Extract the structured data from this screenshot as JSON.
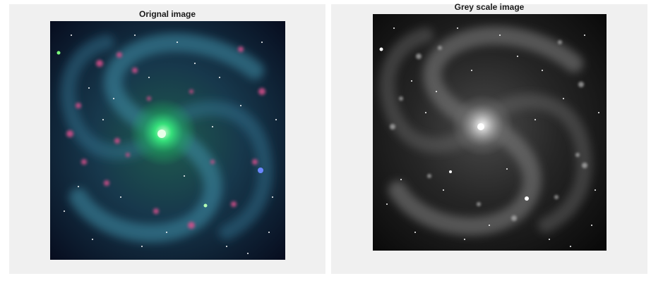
{
  "figure": {
    "panels": [
      {
        "title": "Orignal image"
      },
      {
        "title": "Grey scale image"
      }
    ]
  }
}
